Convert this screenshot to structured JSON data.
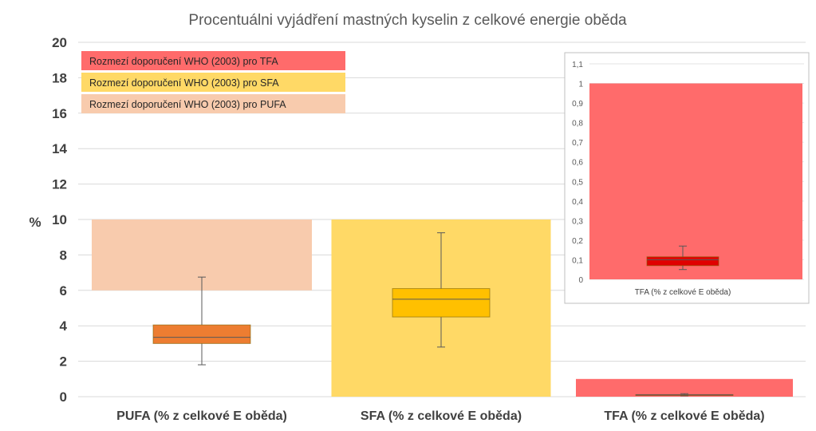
{
  "chart_data": {
    "type": "boxplot",
    "title": "Procentuálni vyjádření mastných kyselin z celkové energie oběda",
    "ylabel": "%",
    "ylim": [
      0,
      20
    ],
    "yticks": [
      "0",
      "2",
      "4",
      "6",
      "8",
      "10",
      "12",
      "14",
      "16",
      "18",
      "20"
    ],
    "categories": [
      "PUFA (% z celkové E oběda)",
      "SFA  (% z celkové E oběda)",
      "TFA  (% z celkové E oběda)"
    ],
    "boxes": [
      {
        "name": "PUFA",
        "min": 1.8,
        "q1": 3.0,
        "median": 3.35,
        "q3": 4.05,
        "max": 6.75,
        "color": "#ED7D31"
      },
      {
        "name": "SFA",
        "min": 2.8,
        "q1": 4.5,
        "median": 5.5,
        "q3": 6.1,
        "max": 9.25,
        "color": "#FFC000"
      },
      {
        "name": "TFA",
        "min": 0.05,
        "q1": 0.07,
        "median": 0.1,
        "q3": 0.115,
        "max": 0.17,
        "color": "#E00000"
      }
    ],
    "ranges": [
      {
        "category": "PUFA",
        "low": 6,
        "high": 10,
        "color": "#F8CBAD"
      },
      {
        "category": "SFA",
        "low": 0,
        "high": 10,
        "color": "#FFD966"
      },
      {
        "category": "TFA",
        "low": 0,
        "high": 1,
        "color": "#FF6B6B"
      }
    ],
    "legend": [
      {
        "label": "Rozmezí doporučení WHO (2003) pro TFA",
        "color": "#FF6B6B"
      },
      {
        "label": "Rozmezí doporučení WHO (2003) pro SFA",
        "color": "#FFD966"
      },
      {
        "label": "Rozmezí doporučení WHO (2003) pro PUFA",
        "color": "#F8CBAD"
      }
    ],
    "inset": {
      "category": "TFA  (% z celkové E oběda)",
      "ylim": [
        0,
        1.1
      ],
      "yticks": [
        "0",
        "0,1",
        "0,2",
        "0,3",
        "0,4",
        "0,5",
        "0,6",
        "0,7",
        "0,8",
        "0,9",
        "1",
        "1,1"
      ],
      "range": {
        "low": 0,
        "high": 1,
        "color": "#FF6B6B"
      },
      "box": {
        "min": 0.05,
        "q1": 0.07,
        "median": 0.1,
        "q3": 0.115,
        "max": 0.17,
        "color": "#E00000"
      }
    }
  }
}
